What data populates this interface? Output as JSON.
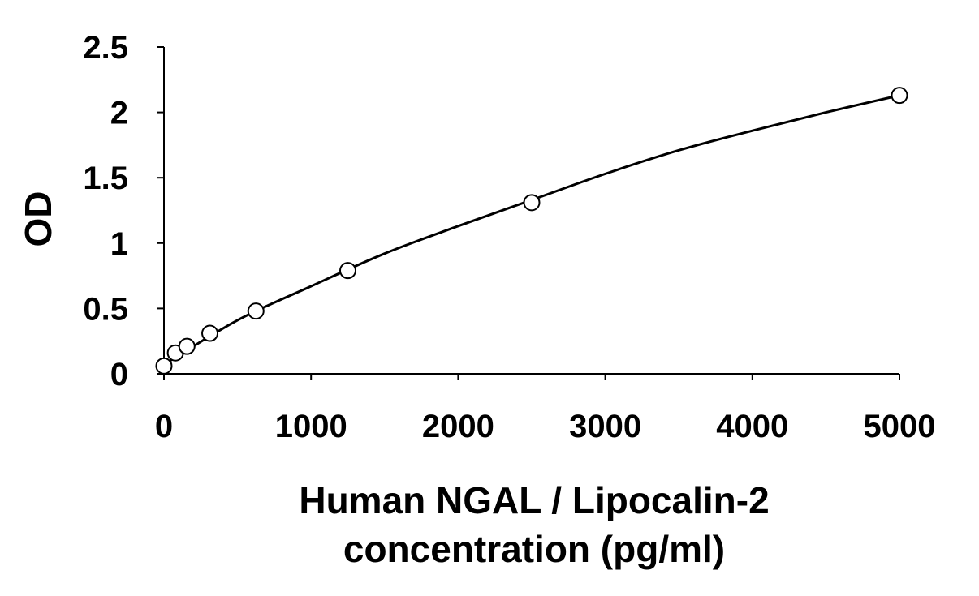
{
  "chart_data": {
    "type": "scatter",
    "xlabel_lines": [
      "Human NGAL / Lipocalin-2",
      "concentration (pg/ml)"
    ],
    "ylabel": "OD",
    "xlim": [
      0,
      5000
    ],
    "ylim": [
      0,
      2.5
    ],
    "x_ticks": [
      0,
      1000,
      2000,
      3000,
      4000,
      5000
    ],
    "x_tick_labels": [
      "0",
      "1000",
      "2000",
      "3000",
      "4000",
      "5000"
    ],
    "y_ticks": [
      0,
      0.5,
      1,
      1.5,
      2,
      2.5
    ],
    "y_tick_labels": [
      "0",
      "0.5",
      "1",
      "1.5",
      "2",
      "2.5"
    ],
    "grid": false,
    "legend": "none",
    "series": [
      {
        "marker": "open-circle",
        "x": [
          0,
          78,
          156,
          312,
          625,
          1250,
          2500,
          5000
        ],
        "y": [
          0.06,
          0.16,
          0.21,
          0.31,
          0.48,
          0.79,
          1.31,
          2.13
        ]
      }
    ],
    "fit_curve": {
      "type": "smooth-fit",
      "x": [
        0,
        500,
        1000,
        1500,
        2000,
        2500,
        3000,
        3500,
        4000,
        4500,
        5000
      ],
      "y": [
        0.07,
        0.41,
        0.67,
        0.92,
        1.13,
        1.33,
        1.53,
        1.71,
        1.86,
        2.0,
        2.13
      ]
    },
    "colors": {
      "axis": "#000000",
      "marker_stroke": "#000000",
      "marker_fill": "#ffffff",
      "curve": "#000000"
    }
  }
}
